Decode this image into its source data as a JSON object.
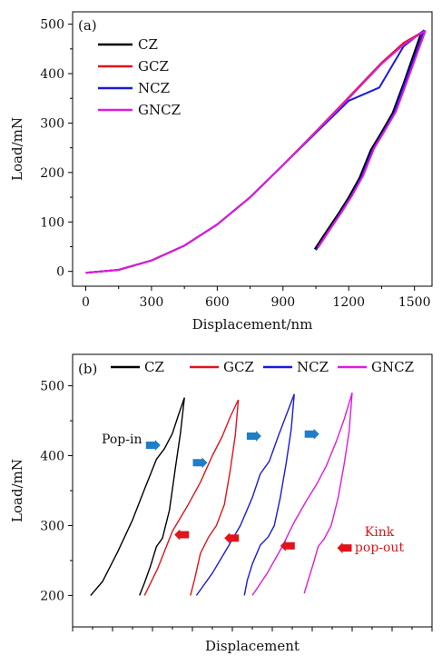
{
  "chart_data": [
    {
      "type": "line",
      "panel_label": "(a)",
      "xlabel": "Displacement/nm",
      "ylabel": "Load/mN",
      "xlim": [
        -60,
        1580
      ],
      "ylim": [
        -30,
        525
      ],
      "xticks": [
        "0",
        "300",
        "600",
        "900",
        "1200",
        "1500"
      ],
      "yticks": [
        "0",
        "100",
        "200",
        "300",
        "400",
        "500"
      ],
      "grid": false,
      "legend": {
        "placement": "top-left",
        "layout": "vertical"
      },
      "series": [
        {
          "name": "CZ",
          "color": "#000000",
          "loading": {
            "x": [
              0,
              150,
              300,
              450,
              600,
              750,
              900,
              1050,
              1200,
              1350,
              1450,
              1530
            ],
            "y": [
              -3,
              3,
              22,
              52,
              95,
              150,
              215,
              282,
              350,
              420,
              460,
              482
            ]
          },
          "unloading": {
            "x": [
              1530,
              1450,
              1400,
              1350,
              1300,
              1250,
              1200,
              1150,
              1100,
              1060,
              1045
            ],
            "y": [
              482,
              380,
              320,
              282,
              245,
              190,
              150,
              115,
              82,
              55,
              45
            ]
          }
        },
        {
          "name": "GCZ",
          "color": "#e0141a",
          "loading": {
            "x": [
              0,
              150,
              300,
              450,
              600,
              750,
              900,
              1050,
              1200,
              1350,
              1450,
              1540
            ],
            "y": [
              -3,
              3,
              22,
              52,
              95,
              150,
              215,
              283,
              352,
              422,
              462,
              485
            ]
          },
          "unloading": {
            "x": [
              1540,
              1460,
              1410,
              1360,
              1310,
              1260,
              1210,
              1160,
              1110,
              1070,
              1055
            ],
            "y": [
              485,
              382,
              322,
              284,
              247,
              192,
              152,
              117,
              84,
              57,
              47
            ]
          }
        },
        {
          "name": "NCZ",
          "color": "#1a1adc",
          "loading": {
            "x": [
              0,
              150,
              300,
              450,
              600,
              750,
              900,
              1050,
              1200,
              1340,
              1450,
              1545
            ],
            "y": [
              -3,
              3,
              22,
              52,
              95,
              150,
              215,
              280,
              345,
              372,
              455,
              488
            ]
          },
          "unloading": {
            "x": [
              1545,
              1455,
              1405,
              1355,
              1305,
              1255,
              1205,
              1155,
              1105,
              1065,
              1050
            ],
            "y": [
              488,
              380,
              318,
              280,
              243,
              188,
              148,
              113,
              80,
              53,
              43
            ]
          }
        },
        {
          "name": "GNCZ",
          "color": "#e01ae0",
          "loading": {
            "x": [
              0,
              150,
              300,
              450,
              600,
              750,
              900,
              1050,
              1200,
              1350,
              1455,
              1550
            ],
            "y": [
              -3,
              3,
              22,
              52,
              95,
              150,
              215,
              282,
              350,
              420,
              460,
              487
            ]
          },
          "unloading": {
            "x": [
              1550,
              1465,
              1415,
              1365,
              1315,
              1265,
              1215,
              1165,
              1115,
              1075,
              1060
            ],
            "y": [
              487,
              383,
              323,
              285,
              248,
              193,
              153,
              118,
              85,
              58,
              48
            ]
          }
        }
      ]
    },
    {
      "type": "line",
      "panel_label": "(b)",
      "xlabel": "Displacement",
      "ylabel": "Load/mN",
      "xlim": [
        0,
        360
      ],
      "ylim": [
        155,
        545
      ],
      "xticks": [],
      "yticks": [
        "200",
        "300",
        "400",
        "500"
      ],
      "grid": false,
      "legend": {
        "placement": "top",
        "layout": "horizontal"
      },
      "series": [
        {
          "name": "CZ",
          "color": "#000000",
          "loading": {
            "x": [
              18,
              30,
              45,
              60,
              72,
              84,
              92,
              100,
              106,
              112
            ],
            "y": [
              200,
              220,
              262,
              308,
              352,
              395,
              410,
              432,
              458,
              483
            ]
          },
          "unloading": {
            "x": [
              112,
              108,
              103,
              97,
              90,
              84,
              78,
              72,
              67
            ],
            "y": [
              483,
              432,
              383,
              322,
              282,
              270,
              242,
              218,
              200
            ]
          }
        },
        {
          "name": "GCZ",
          "color": "#e0141a",
          "loading": {
            "x": [
              72,
              85,
              100,
              115,
              128,
              140,
              150,
              158,
              166
            ],
            "y": [
              200,
              238,
              292,
              328,
              362,
              400,
              428,
              456,
              480
            ]
          },
          "unloading": {
            "x": [
              166,
              163,
              158,
              152,
              144,
              136,
              128,
              122,
              118
            ],
            "y": [
              480,
              430,
              380,
              330,
              300,
              283,
              260,
              222,
              200
            ]
          }
        },
        {
          "name": "NCZ",
          "color": "#1a1adc",
          "loading": {
            "x": [
              124,
              140,
              155,
              168,
              180,
              188,
              197,
              206,
              214,
              222
            ],
            "y": [
              200,
              232,
              268,
              300,
              340,
              374,
              392,
              428,
              458,
              488
            ]
          },
          "unloading": {
            "x": [
              222,
              219,
              214,
              208,
              202,
              196,
              188,
              180,
              175,
              172
            ],
            "y": [
              488,
              438,
              390,
              340,
              300,
              284,
              272,
              245,
              222,
              200
            ]
          }
        },
        {
          "name": "GNCZ",
          "color": "#e01ae0",
          "loading": {
            "x": [
              180,
              195,
              210,
              222,
              234,
              244,
              254,
              264,
              272,
              280
            ],
            "y": [
              200,
              232,
              270,
              305,
              335,
              358,
              385,
              420,
              452,
              490
            ]
          },
          "unloading": {
            "x": [
              280,
              277,
              272,
              266,
              259,
              252,
              246,
              241,
              236,
              232
            ],
            "y": [
              490,
              435,
              388,
              340,
              300,
              281,
              270,
              245,
              222,
              203
            ]
          }
        }
      ],
      "annotations": {
        "popin_text": "Pop-in",
        "kink_text_1": "Kink",
        "kink_text_2": "pop-out",
        "popin_color": "#1e7ec8",
        "kink_color": "#e0141a",
        "popin_arrows": [
          {
            "x": 88,
            "y": 415,
            "dir": "right"
          },
          {
            "x": 135,
            "y": 390,
            "dir": "right"
          },
          {
            "x": 189,
            "y": 428,
            "dir": "right"
          },
          {
            "x": 247,
            "y": 431,
            "dir": "right"
          }
        ],
        "kink_arrows": [
          {
            "x": 102,
            "y": 287,
            "dir": "left"
          },
          {
            "x": 152,
            "y": 282,
            "dir": "left"
          },
          {
            "x": 208,
            "y": 271,
            "dir": "left"
          },
          {
            "x": 265,
            "y": 268,
            "dir": "left"
          }
        ]
      }
    }
  ]
}
